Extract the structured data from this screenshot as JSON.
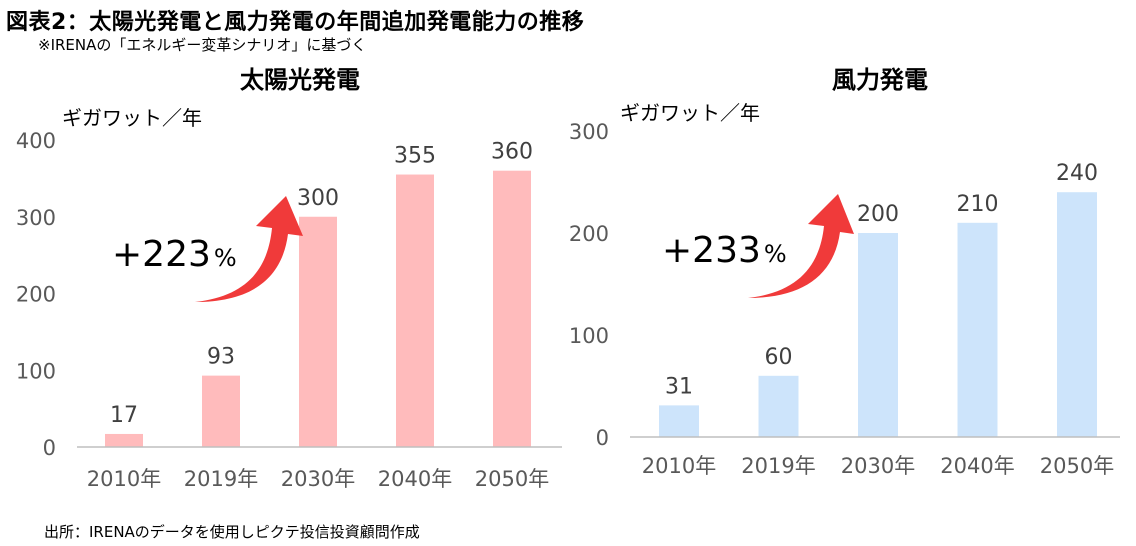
{
  "header": {
    "title": "図表2：太陽光発電と風力発電の年間追加発電能力の推移",
    "subtitle": "※IRENAの「エネルギー変革シナリオ」に基づく"
  },
  "footer": {
    "source": "出所：IRENAのデータを使用しピクテ投信投資顧問作成"
  },
  "colors": {
    "solar_bar": "#FFBBBC",
    "wind_bar": "#CDE4FB",
    "arrow": "#F03A3A",
    "axis": "#BFBFBF"
  },
  "icons": {
    "growth_arrow": "curved-up-arrow-icon"
  },
  "chart_data": [
    {
      "type": "bar",
      "title": "太陽光発電",
      "ylabel": "ギガワット／年",
      "categories": [
        "2010年",
        "2019年",
        "2030年",
        "2040年",
        "2050年"
      ],
      "values": [
        17,
        93,
        300,
        355,
        360
      ],
      "ylim": [
        0,
        400
      ],
      "yticks": [
        0,
        100,
        200,
        300,
        400
      ],
      "grid": false,
      "annotation": {
        "value": "+223",
        "unit": "%"
      }
    },
    {
      "type": "bar",
      "title": "風力発電",
      "ylabel": "ギガワット／年",
      "categories": [
        "2010年",
        "2019年",
        "2030年",
        "2040年",
        "2050年"
      ],
      "values": [
        31,
        60,
        200,
        210,
        240
      ],
      "ylim": [
        0,
        300
      ],
      "yticks": [
        0,
        100,
        200,
        300
      ],
      "grid": false,
      "annotation": {
        "value": "+233",
        "unit": "%"
      }
    }
  ]
}
